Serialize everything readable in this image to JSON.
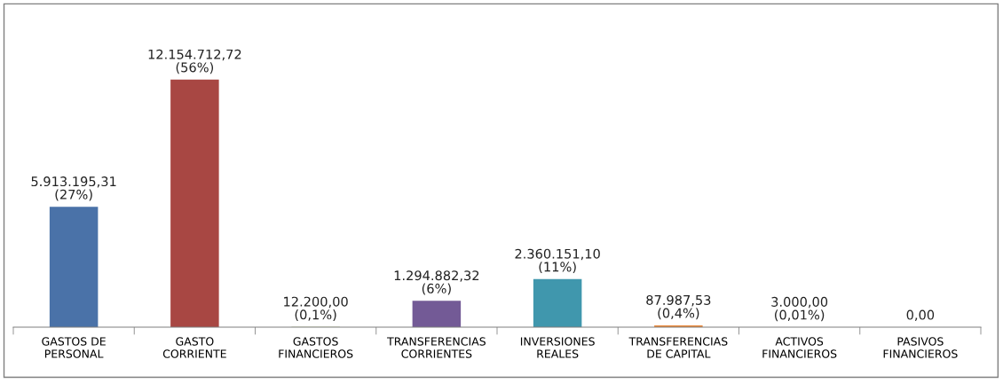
{
  "chart_data": {
    "type": "bar",
    "categories": [
      "GASTOS DE\nPERSONAL",
      "GASTO\nCORRIENTE",
      "GASTOS\nFINANCIEROS",
      "TRANSFERENCIAS\nCORRIENTES",
      "INVERSIONES\nREALES",
      "TRANSFERENCIAS\nDE CAPITAL",
      "ACTIVOS\nFINANCIEROS",
      "PASIVOS\nFINANCIEROS"
    ],
    "values": [
      5913195.31,
      12154712.72,
      12200.0,
      1294882.32,
      2360151.1,
      87987.53,
      3000.0,
      0.0
    ],
    "colors": [
      "#4a72a8",
      "#a84743",
      "#8aa84a",
      "#735a96",
      "#4097ad",
      "#e8883a",
      "#4f81bd",
      "#4f81bd"
    ],
    "value_labels": [
      "5.913.195,31\n(27%)",
      "12.154.712,72\n(56%)",
      "12.200,00\n(0,1%)",
      "1.294.882,32\n(6%)",
      "2.360.151,10\n(11%)",
      "87.987,53\n(0,4%)",
      "3.000,00\n(0,01%)",
      "0,00"
    ],
    "tick_labels": "x",
    "grid": false,
    "legend": false
  }
}
